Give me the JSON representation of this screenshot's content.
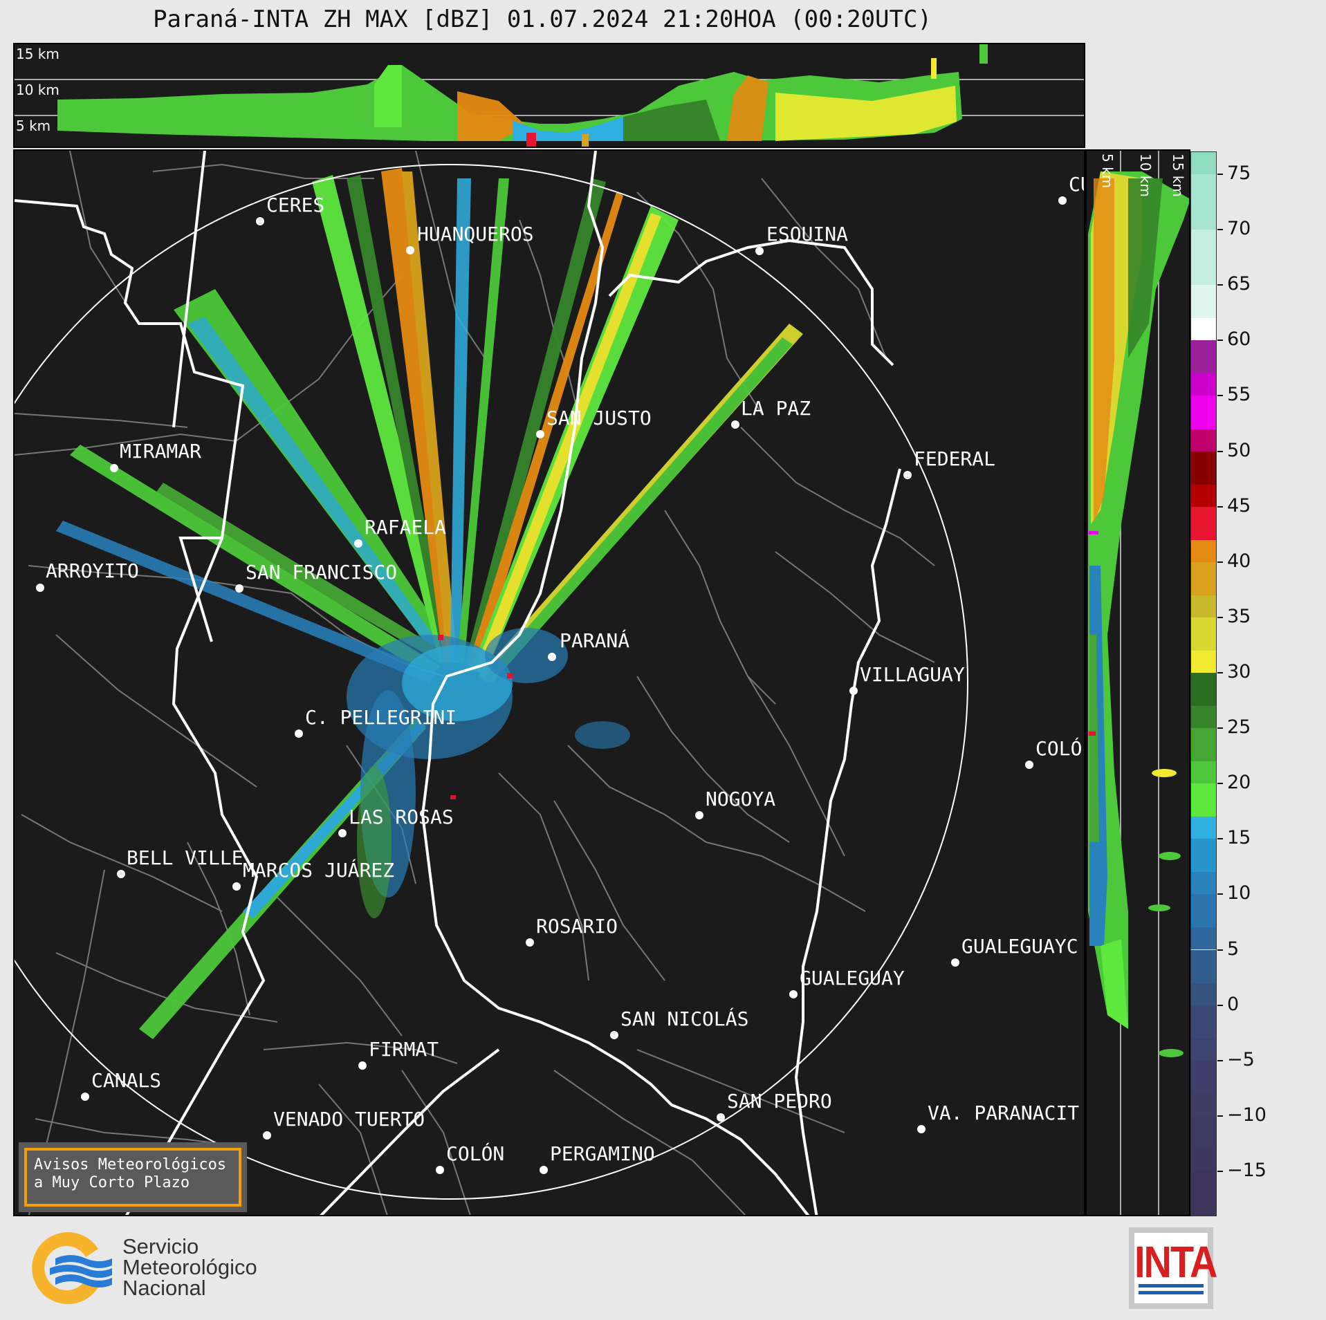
{
  "title": "Paraná-INTA ZH MAX [dBZ] 01.07.2024 21:20HOA (00:20UTC)",
  "top_heights": [
    "15 km",
    "10 km",
    "5 km"
  ],
  "side_heights": [
    "5 km",
    "10 km",
    "15 km"
  ],
  "colorbar": {
    "ticks": [
      "75",
      "70",
      "65",
      "60",
      "55",
      "50",
      "45",
      "40",
      "35",
      "30",
      "25",
      "20",
      "15",
      "10",
      "5",
      "0",
      "−5",
      "−10",
      "−15"
    ],
    "stops": [
      {
        "from": 75,
        "color": "#8fdcc0"
      },
      {
        "from": 70,
        "color": "#a6e4cf"
      },
      {
        "from": 65,
        "color": "#c3eee0"
      },
      {
        "from": 62,
        "color": "#dff7ef"
      },
      {
        "from": 60,
        "color": "#ffffff"
      },
      {
        "from": 57,
        "color": "#9c1f9c"
      },
      {
        "from": 55,
        "color": "#cc00cc"
      },
      {
        "from": 52,
        "color": "#ee00ee"
      },
      {
        "from": 50,
        "color": "#c0006a"
      },
      {
        "from": 47,
        "color": "#8a0000"
      },
      {
        "from": 45,
        "color": "#b40000"
      },
      {
        "from": 42,
        "color": "#e81530"
      },
      {
        "from": 40,
        "color": "#e58a12"
      },
      {
        "from": 37,
        "color": "#d9a21c"
      },
      {
        "from": 35,
        "color": "#c8b82a"
      },
      {
        "from": 32,
        "color": "#d8d830"
      },
      {
        "from": 30,
        "color": "#f0ea30"
      },
      {
        "from": 27,
        "color": "#2a6e22"
      },
      {
        "from": 25,
        "color": "#36852a"
      },
      {
        "from": 22,
        "color": "#45a535"
      },
      {
        "from": 20,
        "color": "#4cc83a"
      },
      {
        "from": 17,
        "color": "#5ee83e"
      },
      {
        "from": 15,
        "color": "#30b0e0"
      },
      {
        "from": 12,
        "color": "#2894cc"
      },
      {
        "from": 10,
        "color": "#2a82bd"
      },
      {
        "from": 7,
        "color": "#2c74ad"
      },
      {
        "from": 5,
        "color": "#2e689c"
      },
      {
        "from": 2,
        "color": "#325e8e"
      },
      {
        "from": 0,
        "color": "#36537f"
      },
      {
        "from": -3,
        "color": "#3a4a74"
      },
      {
        "from": -5,
        "color": "#3d4470"
      },
      {
        "from": -8,
        "color": "#3e3f6a"
      },
      {
        "from": -10,
        "color": "#3f3c66"
      },
      {
        "from": -13,
        "color": "#3f3a62"
      },
      {
        "from": -15,
        "color": "#3f385e"
      },
      {
        "from": -18,
        "color": "#3e365a"
      }
    ],
    "range": [
      -19,
      77
    ]
  },
  "cities": [
    {
      "name": "CERES"
    },
    {
      "name": "HUANQUEROS"
    },
    {
      "name": "ESQUINA"
    },
    {
      "name": "CU"
    },
    {
      "name": "SAN JUSTO"
    },
    {
      "name": "LA PAZ"
    },
    {
      "name": "MIRAMAR"
    },
    {
      "name": "FEDERAL"
    },
    {
      "name": "RAFAELA"
    },
    {
      "name": "ARROYITO"
    },
    {
      "name": "SAN FRANCISCO"
    },
    {
      "name": "PARANÁ"
    },
    {
      "name": "VILLAGUAY"
    },
    {
      "name": "C. PELLEGRINI"
    },
    {
      "name": "COLÓ"
    },
    {
      "name": "NOGOYA"
    },
    {
      "name": "LAS ROSAS"
    },
    {
      "name": "BELL VILLE"
    },
    {
      "name": "MARCOS JUÁREZ"
    },
    {
      "name": "ROSARIO"
    },
    {
      "name": "GUALEGUAYC"
    },
    {
      "name": "GUALEGUAY"
    },
    {
      "name": "SAN NICOLÁS"
    },
    {
      "name": "FIRMAT"
    },
    {
      "name": "CANALS"
    },
    {
      "name": "SAN PEDRO"
    },
    {
      "name": "VENADO TUERTO"
    },
    {
      "name": "VA. PARANACIT"
    },
    {
      "name": "COLÓN"
    },
    {
      "name": "PERGAMINO"
    }
  ],
  "aviso": {
    "line1": "Avisos Meteorológicos",
    "line2": "a Muy Corto Plazo"
  },
  "smn": {
    "line1": "Servicio",
    "line2": "Meteorológico",
    "line3": "Nacional"
  },
  "inta": "INTA"
}
